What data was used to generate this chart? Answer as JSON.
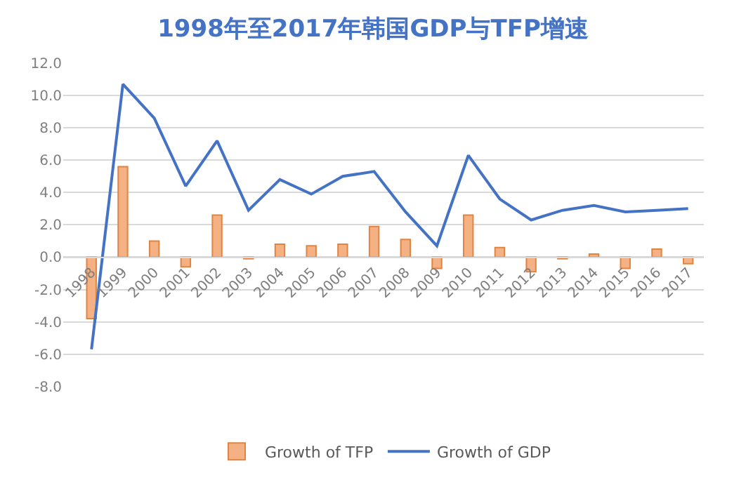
{
  "chart_data": {
    "type": "bar",
    "title": "1998年至2017年韩国GDP与TFP增速",
    "categories": [
      "1998",
      "1999",
      "2000",
      "2001",
      "2002",
      "2003",
      "2004",
      "2005",
      "2006",
      "2007",
      "2008",
      "2009",
      "2010",
      "2011",
      "2012",
      "2013",
      "2014",
      "2015",
      "2016",
      "2017"
    ],
    "series": [
      {
        "name": "Growth of TFP",
        "color": "#f4b183",
        "values": [
          -3.8,
          5.6,
          1.0,
          -0.6,
          2.6,
          -0.1,
          0.8,
          0.7,
          0.8,
          1.9,
          1.1,
          -0.7,
          2.6,
          0.6,
          -0.9,
          -0.1,
          0.2,
          -0.7,
          0.5,
          -0.4
        ]
      },
      {
        "name": "Growth of GDP",
        "type": "line",
        "color": "#4472c4",
        "values": [
          -5.7,
          10.7,
          8.6,
          4.4,
          7.2,
          2.9,
          4.8,
          3.9,
          5.0,
          5.3,
          2.8,
          0.7,
          6.3,
          3.6,
          2.3,
          2.9,
          3.2,
          2.8,
          2.9,
          3.0
        ]
      }
    ],
    "ylim": [
      -8,
      12
    ],
    "yticks": [
      {
        "value": -8,
        "label": "-8.0"
      },
      {
        "value": -6,
        "label": "-6.0"
      },
      {
        "value": -4,
        "label": "-4.0"
      },
      {
        "value": -2,
        "label": "-2.0"
      },
      {
        "value": 0,
        "label": "0.0"
      },
      {
        "value": 2,
        "label": "2.0"
      },
      {
        "value": 4,
        "label": "4.0"
      },
      {
        "value": 6,
        "label": "6.0"
      },
      {
        "value": 8,
        "label": "8.0"
      },
      {
        "value": 10,
        "label": "10.0"
      },
      {
        "value": 12,
        "label": "12.0"
      }
    ],
    "grid": "y",
    "legend": "bottom",
    "marker": "none",
    "line_style": "solid"
  }
}
